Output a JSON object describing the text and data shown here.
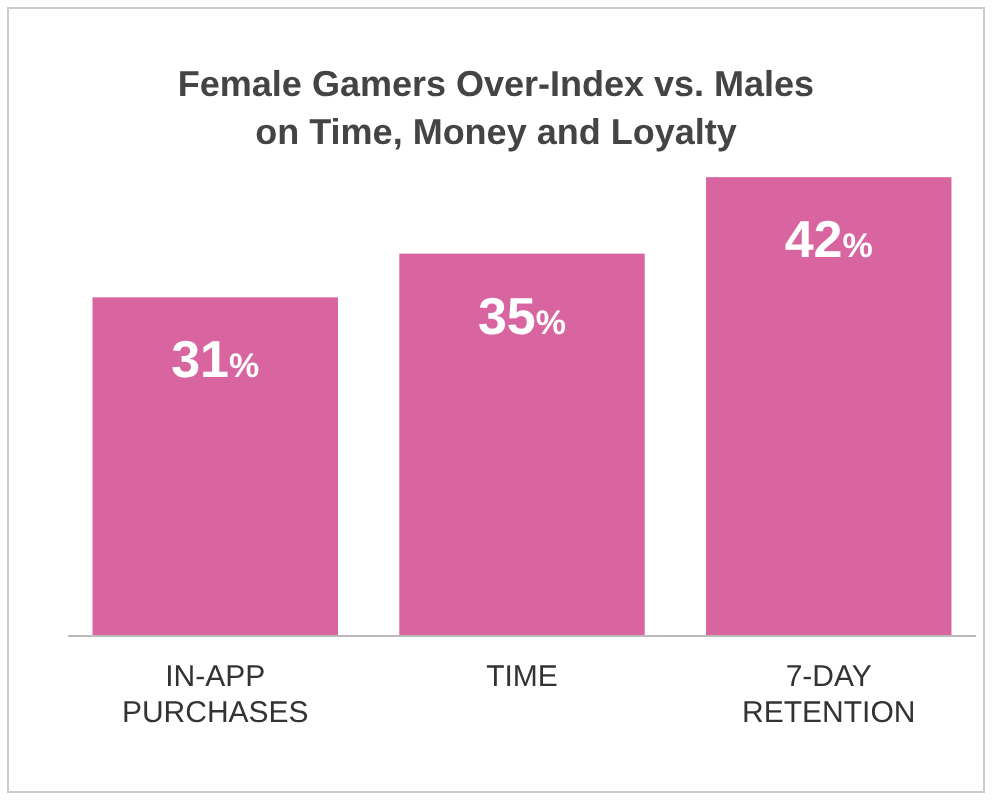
{
  "chart_data": {
    "type": "bar",
    "title": "Female Gamers Over-Index vs. Males\non Time, Money and Loyalty",
    "categories": [
      "IN-APP\nPURCHASES",
      "TIME",
      "7-DAY\nRETENTION"
    ],
    "values": [
      31,
      35,
      42
    ],
    "value_labels": [
      "31%",
      "35%",
      "42%"
    ],
    "color": "#d8659f"
  }
}
